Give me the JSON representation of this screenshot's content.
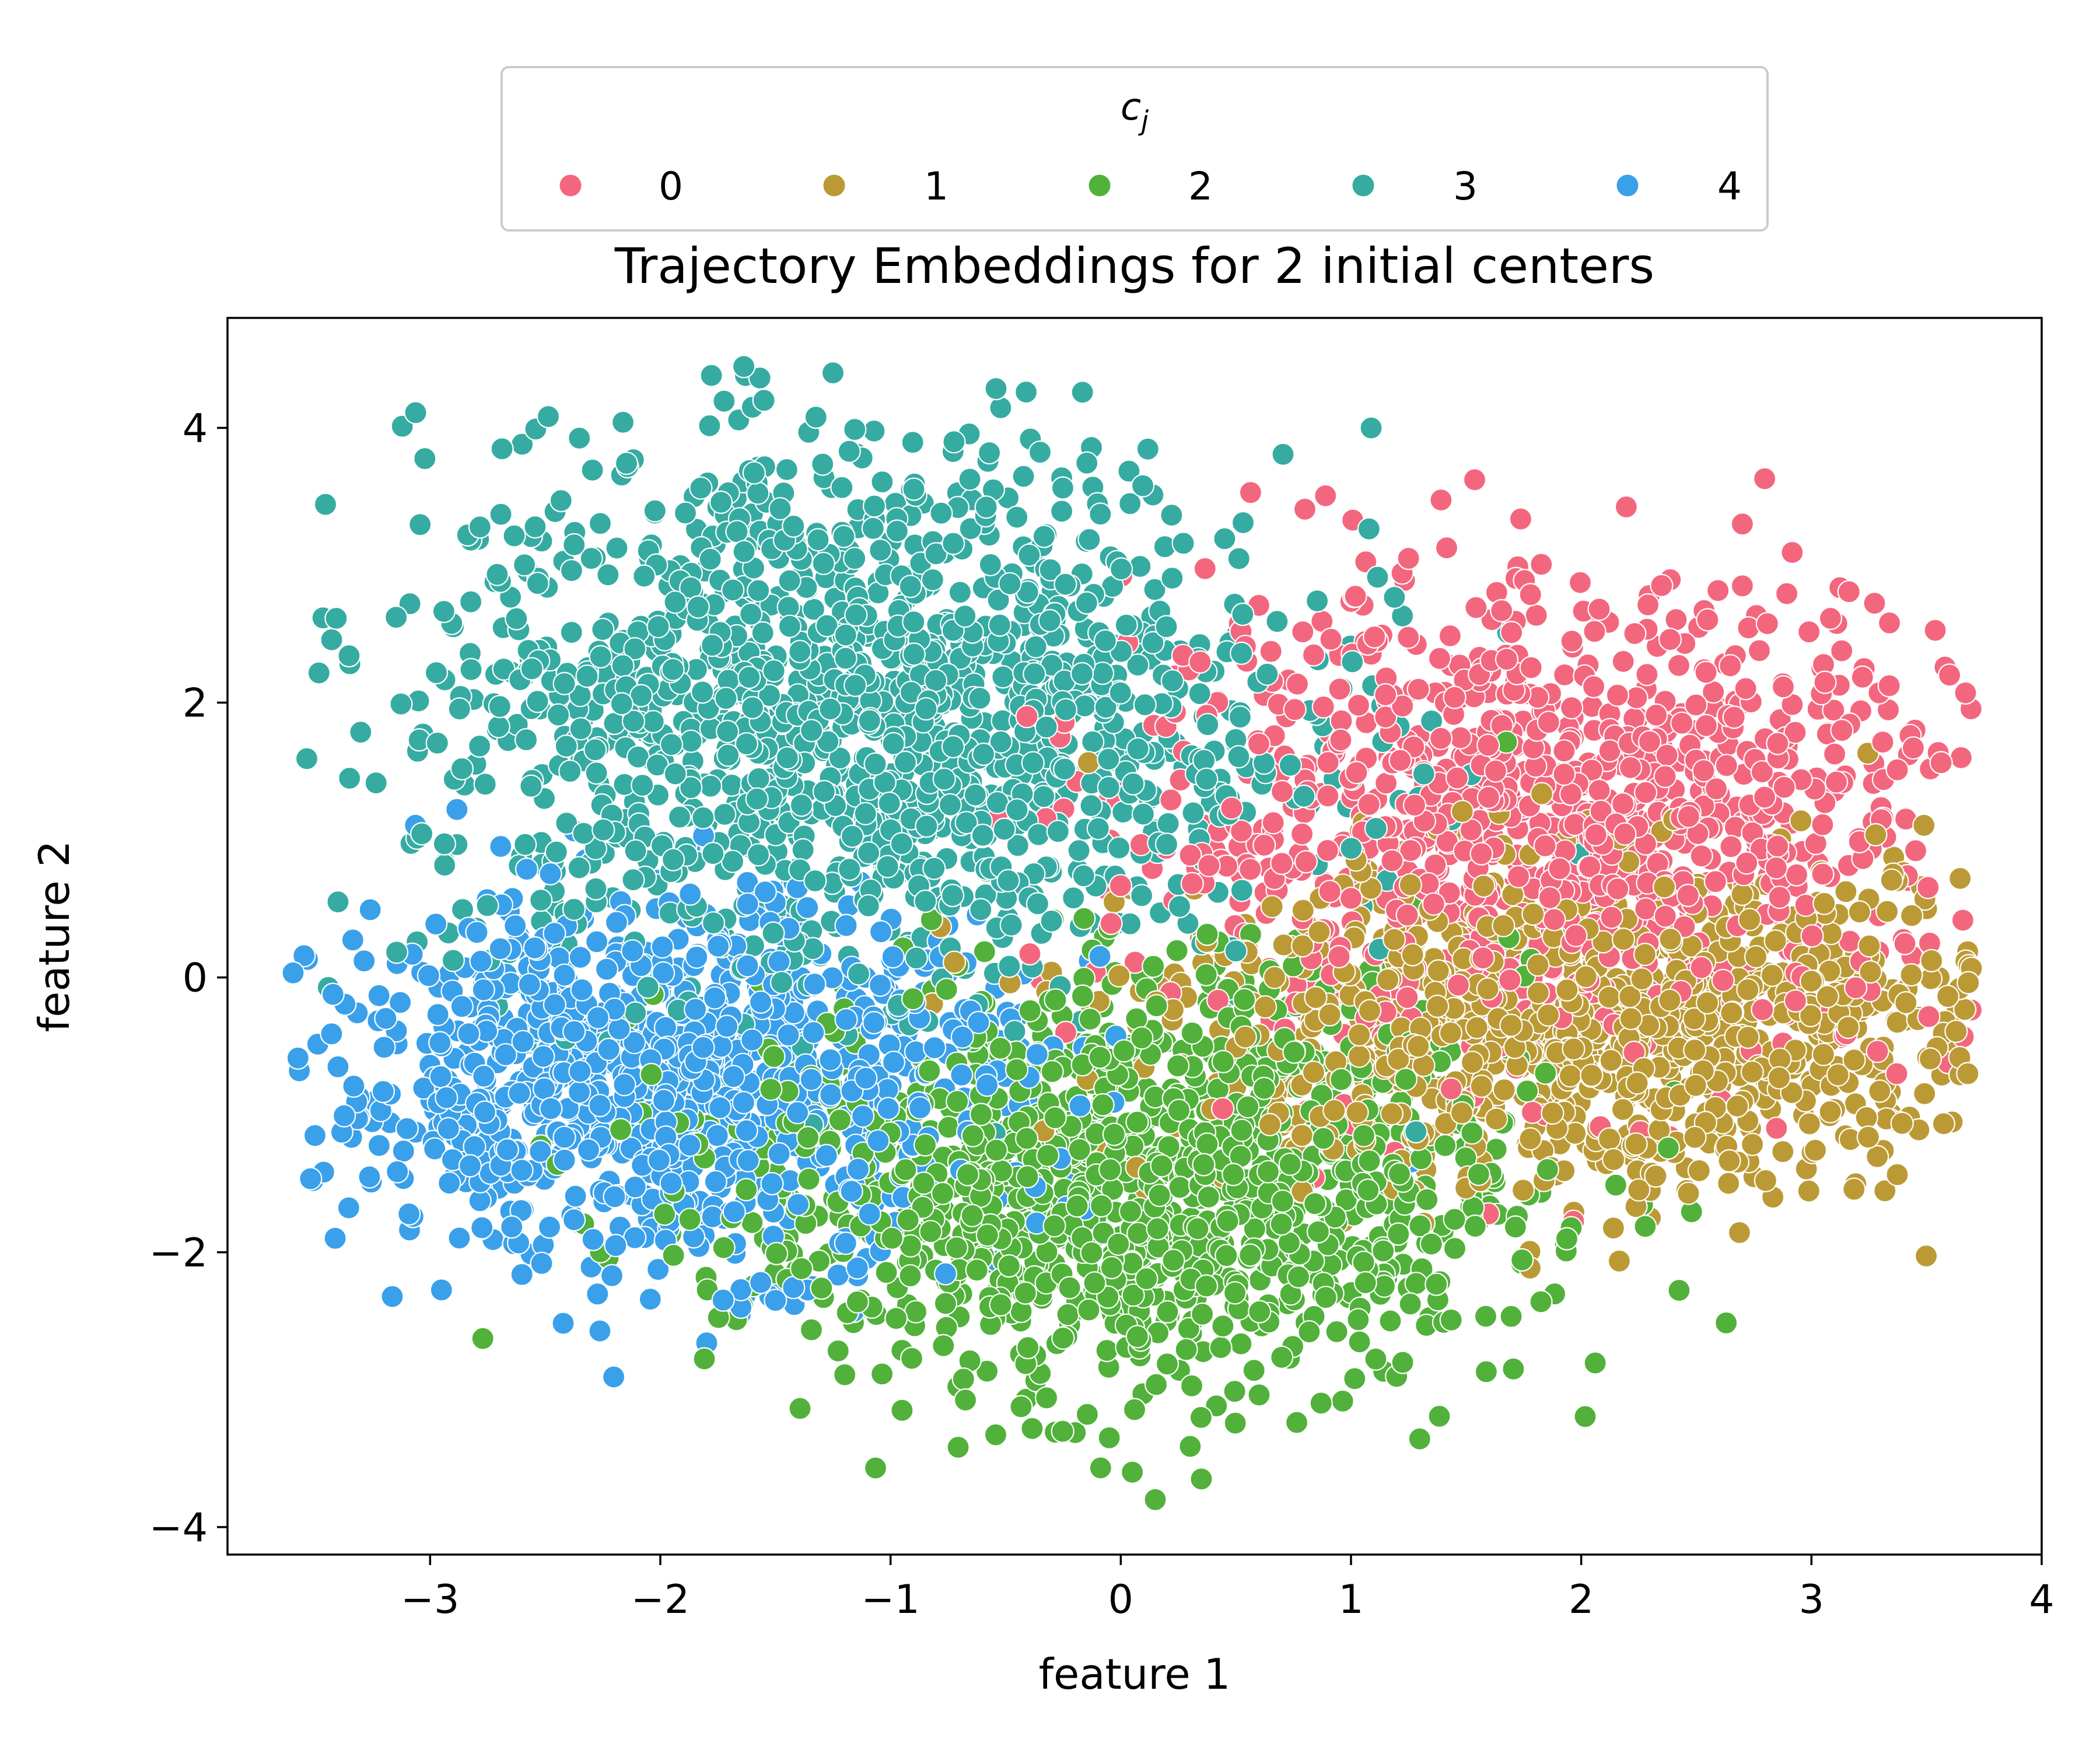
{
  "chart_data": {
    "type": "scatter",
    "title": "Trajectory Embeddings for 2 initial centers",
    "xlabel": "feature 1",
    "ylabel": "feature 2",
    "xlim": [
      -3.88,
      4.0
    ],
    "ylim": [
      -4.2,
      4.8
    ],
    "xticks": [
      -3,
      -2,
      -1,
      0,
      1,
      2,
      3,
      4
    ],
    "yticks": [
      -4,
      -2,
      0,
      2,
      4
    ],
    "grid": false,
    "legend": {
      "title": "c_j",
      "placement": "top-center",
      "columns": 5
    },
    "series": [
      {
        "name": "0",
        "color": "#f3677e",
        "center": [
          1.9,
          1.1
        ],
        "spread": [
          0.9,
          0.85
        ],
        "count": 1100,
        "points": [
          [
            3.6,
            2.2
          ],
          [
            3.65,
            1.6
          ],
          [
            2.7,
            3.3
          ],
          [
            1.25,
            3.05
          ],
          [
            3.45,
            1.8
          ],
          [
            2.7,
            2.85
          ]
        ]
      },
      {
        "name": "1",
        "color": "#bb9a36",
        "center": [
          2.1,
          -0.35
        ],
        "spread": [
          0.95,
          0.6
        ],
        "count": 1100,
        "points": [
          [
            3.5,
            0.5
          ],
          [
            2.75,
            -1.45
          ],
          [
            2.3,
            -1.75
          ],
          [
            2.3,
            -1.55
          ]
        ]
      },
      {
        "name": "2",
        "color": "#51b13a",
        "center": [
          0.05,
          -1.5
        ],
        "spread": [
          0.85,
          0.75
        ],
        "count": 1300,
        "points": [
          [
            0.15,
            -3.8
          ],
          [
            0.05,
            -3.6
          ],
          [
            0.35,
            -3.65
          ],
          [
            -0.95,
            -3.15
          ],
          [
            -0.05,
            -3.35
          ]
        ]
      },
      {
        "name": "3",
        "color": "#36aba2",
        "center": [
          -1.15,
          1.9
        ],
        "spread": [
          0.95,
          1.0
        ],
        "count": 1500,
        "points": [
          [
            -1.25,
            4.4
          ],
          [
            -3.4,
            0.55
          ],
          [
            -3.35,
            1.45
          ],
          [
            -1.6,
            4.15
          ],
          [
            -2.3,
            3.05
          ],
          [
            -1.55,
            4.2
          ]
        ]
      },
      {
        "name": "4",
        "color": "#3aa0ea",
        "center": [
          -1.95,
          -0.75
        ],
        "spread": [
          0.75,
          0.65
        ],
        "count": 1100,
        "points": [
          [
            -3.5,
            -1.15
          ],
          [
            -3.1,
            -1.1
          ],
          [
            -3.4,
            -0.65
          ],
          [
            -1.65,
            -2.4
          ],
          [
            -1.5,
            -2.35
          ],
          [
            -2.65,
            -1.7
          ]
        ]
      }
    ]
  }
}
